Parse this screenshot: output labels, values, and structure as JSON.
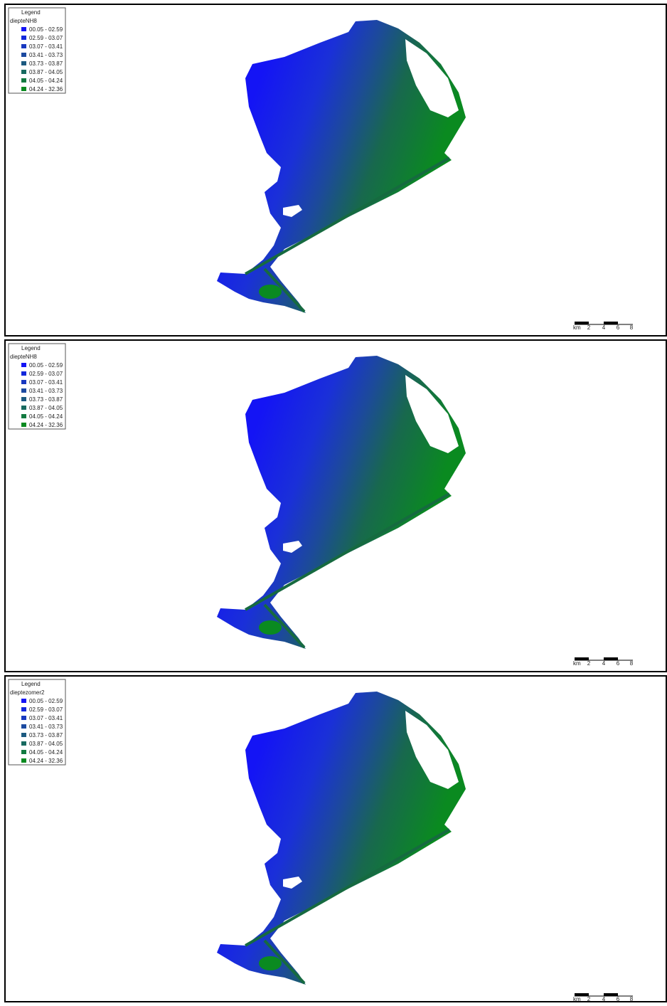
{
  "panels": [
    {
      "legend": {
        "title": "Legend",
        "layer": "diepteNH8",
        "entries": [
          {
            "label": "00.05 - 02.59",
            "color": "#1414f5"
          },
          {
            "label": "02.59 - 03.07",
            "color": "#1228dc"
          },
          {
            "label": "03.07 - 03.41",
            "color": "#1838c0"
          },
          {
            "label": "03.41 - 03.73",
            "color": "#1c4aa0"
          },
          {
            "label": "03.73 - 03.87",
            "color": "#1c5a80"
          },
          {
            "label": "03.87 - 04.05",
            "color": "#186a60"
          },
          {
            "label": "04.05 - 04.24",
            "color": "#127a40"
          },
          {
            "label": "04.24 - 32.36",
            "color": "#0a8a20"
          }
        ]
      },
      "scale_bar": {
        "unit": "km",
        "labels": [
          "2",
          "4",
          "6",
          "8"
        ]
      }
    },
    {
      "legend": {
        "title": "Legend",
        "layer": "diepteNH8",
        "entries": [
          {
            "label": "00.05 - 02.59",
            "color": "#1414f5"
          },
          {
            "label": "02.59 - 03.07",
            "color": "#1228dc"
          },
          {
            "label": "03.07 - 03.41",
            "color": "#1838c0"
          },
          {
            "label": "03.41 - 03.73",
            "color": "#1c4aa0"
          },
          {
            "label": "03.73 - 03.87",
            "color": "#1c5a80"
          },
          {
            "label": "03.87 - 04.05",
            "color": "#186a60"
          },
          {
            "label": "04.05 - 04.24",
            "color": "#127a40"
          },
          {
            "label": "04.24 - 32.36",
            "color": "#0a8a20"
          }
        ]
      },
      "scale_bar": {
        "unit": "km",
        "labels": [
          "2",
          "4",
          "6",
          "8"
        ]
      }
    },
    {
      "legend": {
        "title": "Legend",
        "layer": "dieptezomer2",
        "entries": [
          {
            "label": "00.05 - 02.59",
            "color": "#1414f5"
          },
          {
            "label": "02.59 - 03.07",
            "color": "#1228dc"
          },
          {
            "label": "03.07 - 03.41",
            "color": "#1838c0"
          },
          {
            "label": "03.41 - 03.73",
            "color": "#1c4aa0"
          },
          {
            "label": "03.73 - 03.87",
            "color": "#1c5a80"
          },
          {
            "label": "03.87 - 04.05",
            "color": "#186a60"
          },
          {
            "label": "04.05 - 04.24",
            "color": "#127a40"
          },
          {
            "label": "04.24 - 32.36",
            "color": "#0a8a20"
          }
        ]
      },
      "scale_bar": {
        "unit": "km",
        "labels": [
          "2",
          "4",
          "6",
          "8"
        ]
      }
    }
  ]
}
